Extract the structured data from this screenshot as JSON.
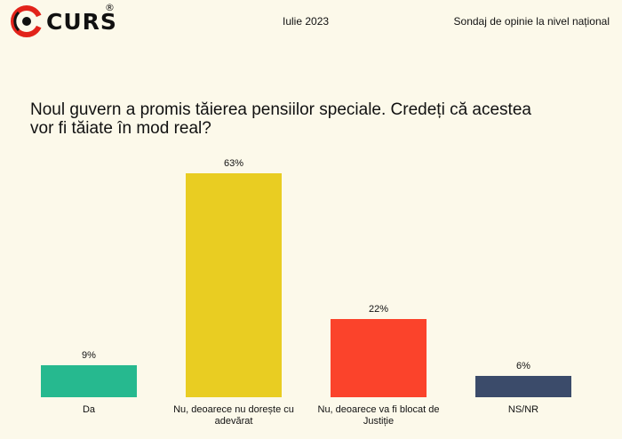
{
  "header": {
    "brand": "CURS",
    "brand_mark": "®",
    "date": "Iulie 2023",
    "survey": "Sondaj de opinie la nivel național"
  },
  "chart_data": {
    "type": "bar",
    "title": "Noul guvern a promis tăierea pensiilor speciale. Credeți că acestea vor fi tăiate în mod real?",
    "title_lines": [
      "Noul guvern a promis tăierea pensiilor speciale. Credeți că acestea",
      "vor fi tăiate în mod real?"
    ],
    "categories": [
      [
        "Da"
      ],
      [
        "Nu, deoarece nu dorește cu",
        "adevărat"
      ],
      [
        "Nu, deoarece va fi blocat de",
        "Justiție"
      ],
      [
        "NS/NR"
      ]
    ],
    "values": [
      9,
      63,
      22,
      6
    ],
    "value_labels": [
      "9%",
      "63%",
      "22%",
      "6%"
    ],
    "colors": [
      "#26b98f",
      "#e9cd22",
      "#fb432b",
      "#3b4b6a"
    ],
    "ylim": [
      0,
      63
    ],
    "grid": false,
    "legend": "none"
  }
}
